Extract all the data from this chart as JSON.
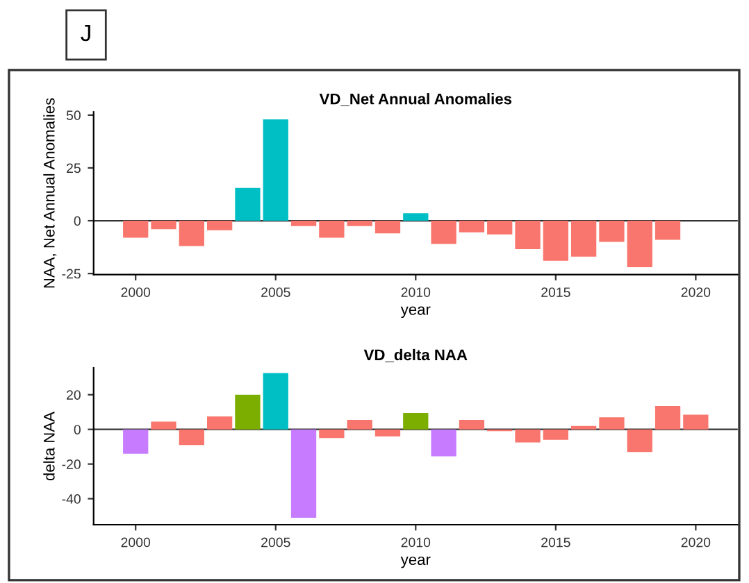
{
  "chart_data": [
    {
      "type": "bar",
      "title": "VD_Net Annual Anomalies",
      "xlabel": "year",
      "ylabel": "NAA, Net Annual Anomalies",
      "x": [
        2000,
        2001,
        2002,
        2003,
        2004,
        2005,
        2006,
        2007,
        2008,
        2009,
        2010,
        2011,
        2012,
        2013,
        2014,
        2015,
        2016,
        2017,
        2018,
        2019
      ],
      "values": [
        -8,
        -4,
        -12,
        -4.5,
        15.5,
        48,
        -2.5,
        -8,
        -2.5,
        -6,
        3.5,
        -11,
        -5.5,
        -6.5,
        -13.5,
        -19,
        -17,
        -10,
        -22,
        -9
      ],
      "colors": [
        "#f8766d",
        "#f8766d",
        "#f8766d",
        "#f8766d",
        "#00bfc4",
        "#00bfc4",
        "#f8766d",
        "#f8766d",
        "#f8766d",
        "#f8766d",
        "#00bfc4",
        "#f8766d",
        "#f8766d",
        "#f8766d",
        "#f8766d",
        "#f8766d",
        "#f8766d",
        "#f8766d",
        "#f8766d",
        "#f8766d"
      ],
      "xlim": [
        1998.5,
        2021.5
      ],
      "xticks": [
        2000,
        2005,
        2010,
        2015,
        2020
      ],
      "ylim": [
        -25.5,
        51.5
      ],
      "yticks": [
        -25,
        0,
        25,
        50
      ],
      "ref_lines": [
        {
          "axis": "y",
          "value": 0,
          "color": "#333333"
        }
      ],
      "annotations": [
        "J"
      ],
      "grid": false,
      "legend": false
    },
    {
      "type": "bar",
      "title": "VD_delta NAA",
      "xlabel": "year",
      "ylabel": "delta NAA",
      "x": [
        2000,
        2001,
        2002,
        2003,
        2004,
        2005,
        2006,
        2007,
        2008,
        2009,
        2010,
        2011,
        2012,
        2013,
        2014,
        2015,
        2016,
        2017,
        2018,
        2019,
        2020
      ],
      "values": [
        -14,
        4.5,
        -9,
        7.5,
        20,
        32.5,
        -51,
        -5,
        5.5,
        -4,
        9.5,
        -15.5,
        5.5,
        -1,
        -7.5,
        -6,
        2,
        7,
        -13,
        13.5,
        8.5
      ],
      "colors": [
        "#c77cff",
        "#f8766d",
        "#f8766d",
        "#f8766d",
        "#7cae00",
        "#00bfc4",
        "#c77cff",
        "#f8766d",
        "#f8766d",
        "#f8766d",
        "#7cae00",
        "#c77cff",
        "#f8766d",
        "#f8766d",
        "#f8766d",
        "#f8766d",
        "#f8766d",
        "#f8766d",
        "#f8766d",
        "#f8766d",
        "#f8766d"
      ],
      "xlim": [
        1998.5,
        2021.5
      ],
      "xticks": [
        2000,
        2005,
        2010,
        2015,
        2020
      ],
      "ylim": [
        -55,
        35.5
      ],
      "yticks": [
        -40,
        -20,
        0,
        20
      ],
      "ref_lines": [
        {
          "axis": "y",
          "value": 0,
          "color": "#333333"
        }
      ],
      "grid": false,
      "legend": false
    }
  ]
}
